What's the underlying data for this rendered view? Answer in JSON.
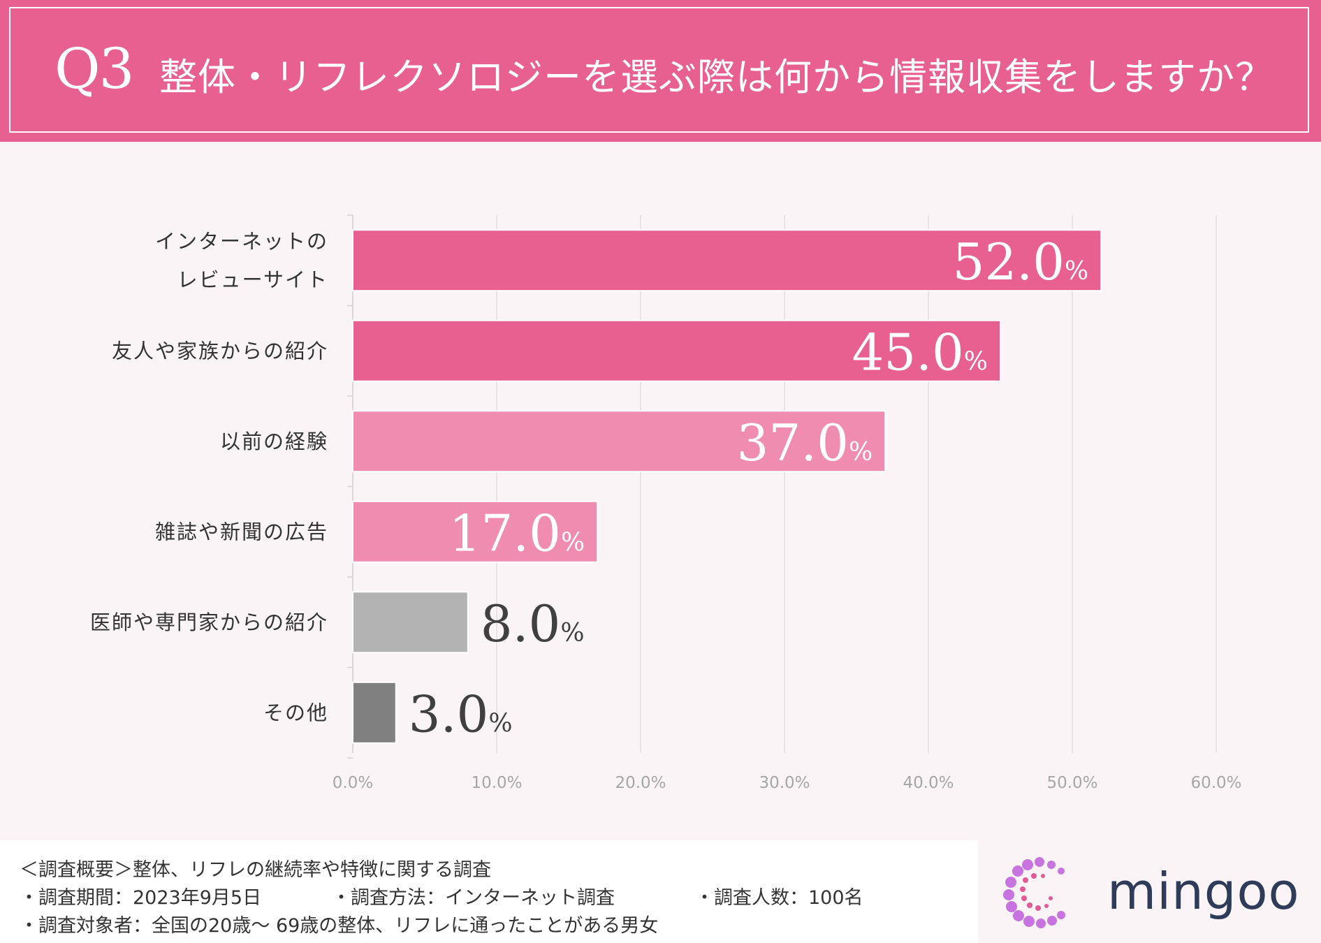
{
  "header": {
    "question_number": "Q3",
    "question_text": "整体・リフレクソロジーを選ぶ際は何から情報収集をしますか？"
  },
  "chart_data": {
    "type": "bar",
    "orientation": "horizontal",
    "title": "整体・リフレクソロジーを選ぶ際は何から情報収集をしますか？",
    "categories": [
      [
        "インターネットの",
        "レビューサイト"
      ],
      [
        "友人や家族からの紹介"
      ],
      [
        "以前の経験"
      ],
      [
        "雑誌や新聞の広告"
      ],
      [
        "医師や専門家からの紹介"
      ],
      [
        "その他"
      ]
    ],
    "values": [
      52.0,
      45.0,
      37.0,
      17.0,
      8.0,
      3.0
    ],
    "value_labels": [
      "52.0",
      "45.0",
      "37.0",
      "17.0",
      "8.0",
      "3.0"
    ],
    "value_unit": "%",
    "bar_colors": [
      "#e8608f",
      "#e8608f",
      "#ef8cb0",
      "#ef8cb0",
      "#b3b3b3",
      "#808080"
    ],
    "xlim": [
      0,
      60
    ],
    "x_ticks": [
      "0.0%",
      "10.0%",
      "20.0%",
      "30.0%",
      "40.0%",
      "50.0%",
      "60.0%"
    ],
    "grid": true
  },
  "footer": {
    "line1": "＜調査概要＞整体、リフレの継続率や特徴に関する調査",
    "line2_a": "・調査期間：2023年9月5日",
    "line2_b": "・調査方法：インターネット調査",
    "line2_c": "・調査人数：100名",
    "line3": "・調査対象者：全国の20歳～ 69歳の整体、リフレに通ったことがある男女"
  },
  "logo": {
    "name": "mingoo",
    "dot_colors": [
      "#c774e0",
      "#e25a93"
    ]
  }
}
